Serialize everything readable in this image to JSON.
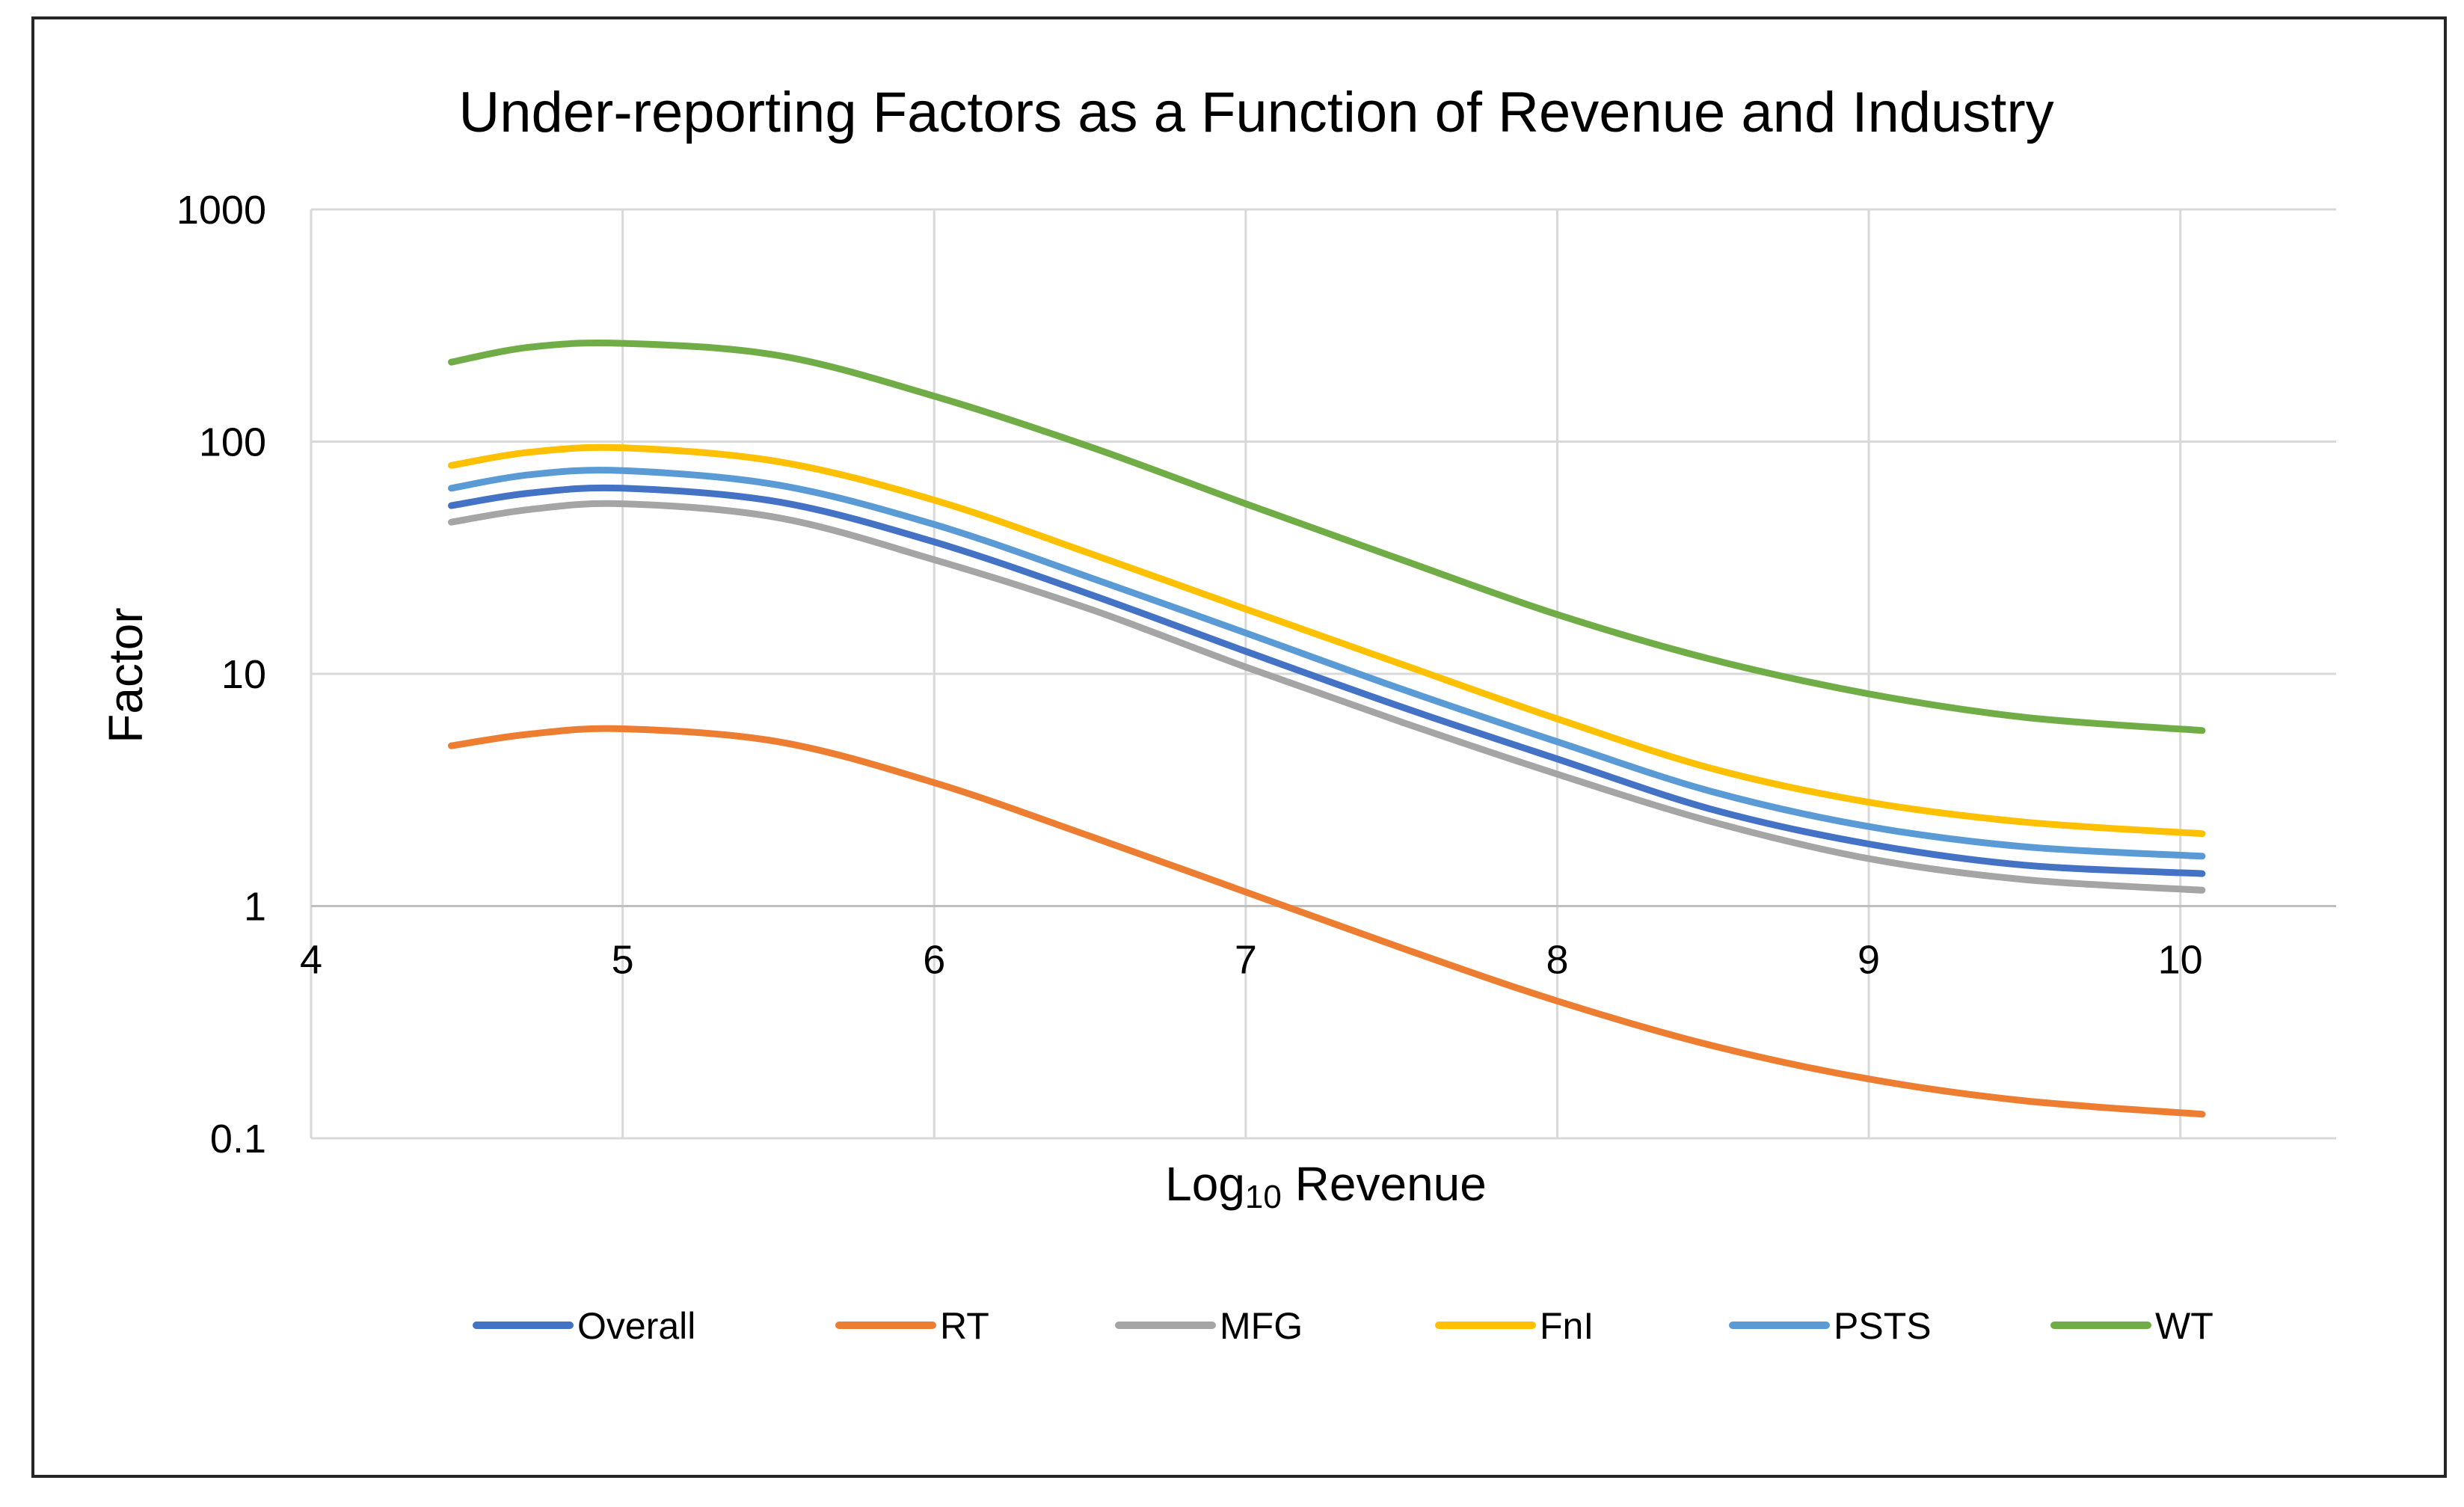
{
  "chart_data": {
    "type": "line",
    "title": "Under-reporting Factors as a Function of Revenue and Industry",
    "xlabel": {
      "base": "Log",
      "subscript": "10",
      "rest": " Revenue"
    },
    "ylabel": "Factor",
    "xlim": [
      4,
      10.5
    ],
    "ylim": [
      0.1,
      1000
    ],
    "yscale": "log",
    "grid": true,
    "legend_position": "bottom",
    "x_ticks": [
      4,
      5,
      6,
      7,
      8,
      9,
      10
    ],
    "x_tick_labels": [
      "4",
      "5",
      "6",
      "7",
      "8",
      "9",
      "10"
    ],
    "y_ticks": [
      0.1,
      1,
      10,
      100,
      1000
    ],
    "y_tick_labels": [
      "0.1",
      "1",
      "10",
      "100",
      "1000"
    ],
    "x": [
      4.45,
      4.7,
      5,
      5.5,
      6,
      6.5,
      7,
      7.5,
      8,
      8.5,
      9,
      9.5,
      10.07
    ],
    "series": [
      {
        "name": "Overall",
        "color": "#4472C4",
        "values": [
          53,
          60,
          63,
          55,
          37,
          22,
          12.5,
          7.2,
          4.3,
          2.6,
          1.85,
          1.5,
          1.38
        ]
      },
      {
        "name": "RT",
        "color": "#ED7D31",
        "values": [
          4.9,
          5.5,
          5.8,
          5.1,
          3.4,
          2.0,
          1.15,
          0.66,
          0.39,
          0.25,
          0.18,
          0.145,
          0.127
        ]
      },
      {
        "name": "MFG",
        "color": "#A5A5A5",
        "values": [
          45,
          51,
          54,
          47,
          31,
          19,
          10.7,
          6.2,
          3.7,
          2.3,
          1.6,
          1.3,
          1.17
        ]
      },
      {
        "name": "FnI",
        "color": "#FFC000",
        "values": [
          79,
          90,
          94,
          82,
          56,
          33,
          19,
          11,
          6.4,
          3.9,
          2.8,
          2.3,
          2.05
        ]
      },
      {
        "name": "PSTS",
        "color": "#5B9BD5",
        "values": [
          63,
          72,
          75,
          65,
          44,
          26,
          15,
          8.6,
          5.1,
          3.1,
          2.2,
          1.8,
          1.64
        ]
      },
      {
        "name": "WT",
        "color": "#70AD47",
        "values": [
          220,
          255,
          265,
          235,
          157,
          95,
          54,
          31,
          18,
          11.5,
          8.2,
          6.5,
          5.7
        ]
      }
    ]
  }
}
